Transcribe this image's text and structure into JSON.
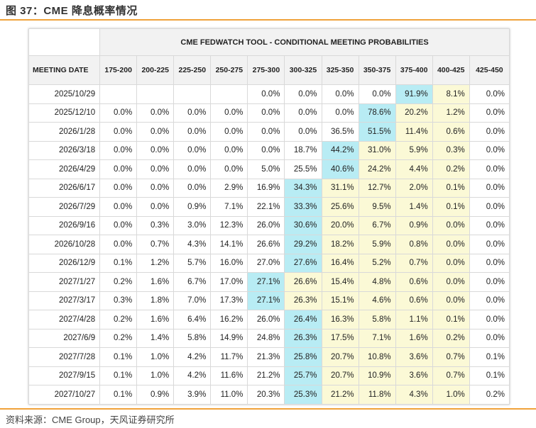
{
  "figure": {
    "title": "图 37：CME 降息概率情况",
    "source": "资料来源：CME Group，天风证券研究所"
  },
  "colors": {
    "accent_rule": "#f0a23a",
    "highlight_max": "#b8ecf4",
    "highlight_zone": "#fbf9d6",
    "header_bg": "#f2f2f2"
  },
  "chart_data": {
    "type": "table",
    "title": "CME FEDWATCH TOOL - CONDITIONAL MEETING PROBABILITIES",
    "row_header": "MEETING DATE",
    "columns": [
      "175-200",
      "200-225",
      "225-250",
      "250-275",
      "275-300",
      "300-325",
      "325-350",
      "350-375",
      "375-400",
      "400-425",
      "425-450"
    ],
    "rows": [
      {
        "date": "2025/10/29",
        "cells": [
          "",
          "",
          "",
          "",
          "0.0%",
          "0.0%",
          "0.0%",
          "0.0%",
          "91.9%",
          "8.1%",
          "0.0%"
        ],
        "hl": [
          "",
          "",
          "",
          "",
          "",
          "",
          "",
          "",
          "b",
          "y",
          ""
        ]
      },
      {
        "date": "2025/12/10",
        "cells": [
          "0.0%",
          "0.0%",
          "0.0%",
          "0.0%",
          "0.0%",
          "0.0%",
          "0.0%",
          "78.6%",
          "20.2%",
          "1.2%",
          "0.0%"
        ],
        "hl": [
          "",
          "",
          "",
          "",
          "",
          "",
          "",
          "b",
          "y",
          "y",
          ""
        ]
      },
      {
        "date": "2026/1/28",
        "cells": [
          "0.0%",
          "0.0%",
          "0.0%",
          "0.0%",
          "0.0%",
          "0.0%",
          "36.5%",
          "51.5%",
          "11.4%",
          "0.6%",
          "0.0%"
        ],
        "hl": [
          "",
          "",
          "",
          "",
          "",
          "",
          "",
          "b",
          "y",
          "y",
          ""
        ]
      },
      {
        "date": "2026/3/18",
        "cells": [
          "0.0%",
          "0.0%",
          "0.0%",
          "0.0%",
          "0.0%",
          "18.7%",
          "44.2%",
          "31.0%",
          "5.9%",
          "0.3%",
          "0.0%"
        ],
        "hl": [
          "",
          "",
          "",
          "",
          "",
          "",
          "b",
          "y",
          "y",
          "y",
          ""
        ]
      },
      {
        "date": "2026/4/29",
        "cells": [
          "0.0%",
          "0.0%",
          "0.0%",
          "0.0%",
          "5.0%",
          "25.5%",
          "40.6%",
          "24.2%",
          "4.4%",
          "0.2%",
          "0.0%"
        ],
        "hl": [
          "",
          "",
          "",
          "",
          "",
          "",
          "b",
          "y",
          "y",
          "y",
          ""
        ]
      },
      {
        "date": "2026/6/17",
        "cells": [
          "0.0%",
          "0.0%",
          "0.0%",
          "2.9%",
          "16.9%",
          "34.3%",
          "31.1%",
          "12.7%",
          "2.0%",
          "0.1%",
          "0.0%"
        ],
        "hl": [
          "",
          "",
          "",
          "",
          "",
          "b",
          "y",
          "y",
          "y",
          "y",
          ""
        ]
      },
      {
        "date": "2026/7/29",
        "cells": [
          "0.0%",
          "0.0%",
          "0.9%",
          "7.1%",
          "22.1%",
          "33.3%",
          "25.6%",
          "9.5%",
          "1.4%",
          "0.1%",
          "0.0%"
        ],
        "hl": [
          "",
          "",
          "",
          "",
          "",
          "b",
          "y",
          "y",
          "y",
          "y",
          ""
        ]
      },
      {
        "date": "2026/9/16",
        "cells": [
          "0.0%",
          "0.3%",
          "3.0%",
          "12.3%",
          "26.0%",
          "30.6%",
          "20.0%",
          "6.7%",
          "0.9%",
          "0.0%",
          "0.0%"
        ],
        "hl": [
          "",
          "",
          "",
          "",
          "",
          "b",
          "y",
          "y",
          "y",
          "y",
          ""
        ]
      },
      {
        "date": "2026/10/28",
        "cells": [
          "0.0%",
          "0.7%",
          "4.3%",
          "14.1%",
          "26.6%",
          "29.2%",
          "18.2%",
          "5.9%",
          "0.8%",
          "0.0%",
          "0.0%"
        ],
        "hl": [
          "",
          "",
          "",
          "",
          "",
          "b",
          "y",
          "y",
          "y",
          "y",
          ""
        ]
      },
      {
        "date": "2026/12/9",
        "cells": [
          "0.1%",
          "1.2%",
          "5.7%",
          "16.0%",
          "27.0%",
          "27.6%",
          "16.4%",
          "5.2%",
          "0.7%",
          "0.0%",
          "0.0%"
        ],
        "hl": [
          "",
          "",
          "",
          "",
          "",
          "b",
          "y",
          "y",
          "y",
          "y",
          ""
        ]
      },
      {
        "date": "2027/1/27",
        "cells": [
          "0.2%",
          "1.6%",
          "6.7%",
          "17.0%",
          "27.1%",
          "26.6%",
          "15.4%",
          "4.8%",
          "0.6%",
          "0.0%",
          "0.0%"
        ],
        "hl": [
          "",
          "",
          "",
          "",
          "b",
          "y",
          "y",
          "y",
          "y",
          "y",
          ""
        ]
      },
      {
        "date": "2027/3/17",
        "cells": [
          "0.3%",
          "1.8%",
          "7.0%",
          "17.3%",
          "27.1%",
          "26.3%",
          "15.1%",
          "4.6%",
          "0.6%",
          "0.0%",
          "0.0%"
        ],
        "hl": [
          "",
          "",
          "",
          "",
          "b",
          "y",
          "y",
          "y",
          "y",
          "y",
          ""
        ]
      },
      {
        "date": "2027/4/28",
        "cells": [
          "0.2%",
          "1.6%",
          "6.4%",
          "16.2%",
          "26.0%",
          "26.4%",
          "16.3%",
          "5.8%",
          "1.1%",
          "0.1%",
          "0.0%"
        ],
        "hl": [
          "",
          "",
          "",
          "",
          "",
          "b",
          "y",
          "y",
          "y",
          "y",
          ""
        ]
      },
      {
        "date": "2027/6/9",
        "cells": [
          "0.2%",
          "1.4%",
          "5.8%",
          "14.9%",
          "24.8%",
          "26.3%",
          "17.5%",
          "7.1%",
          "1.6%",
          "0.2%",
          "0.0%"
        ],
        "hl": [
          "",
          "",
          "",
          "",
          "",
          "b",
          "y",
          "y",
          "y",
          "y",
          ""
        ]
      },
      {
        "date": "2027/7/28",
        "cells": [
          "0.1%",
          "1.0%",
          "4.2%",
          "11.7%",
          "21.3%",
          "25.8%",
          "20.7%",
          "10.8%",
          "3.6%",
          "0.7%",
          "0.1%"
        ],
        "hl": [
          "",
          "",
          "",
          "",
          "",
          "b",
          "y",
          "y",
          "y",
          "y",
          ""
        ]
      },
      {
        "date": "2027/9/15",
        "cells": [
          "0.1%",
          "1.0%",
          "4.2%",
          "11.6%",
          "21.2%",
          "25.7%",
          "20.7%",
          "10.9%",
          "3.6%",
          "0.7%",
          "0.1%"
        ],
        "hl": [
          "",
          "",
          "",
          "",
          "",
          "b",
          "y",
          "y",
          "y",
          "y",
          ""
        ]
      },
      {
        "date": "2027/10/27",
        "cells": [
          "0.1%",
          "0.9%",
          "3.9%",
          "11.0%",
          "20.3%",
          "25.3%",
          "21.2%",
          "11.8%",
          "4.3%",
          "1.0%",
          "0.2%"
        ],
        "hl": [
          "",
          "",
          "",
          "",
          "",
          "b",
          "y",
          "y",
          "y",
          "y",
          ""
        ]
      }
    ]
  }
}
